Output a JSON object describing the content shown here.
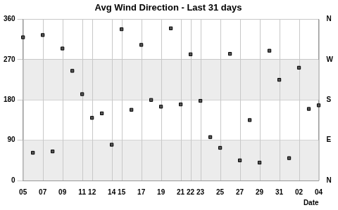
{
  "chart_data": {
    "type": "scatter",
    "title": "Avg Wind Direction - Last 31 days",
    "x_label": "Date",
    "categories": [
      "05",
      null,
      "07",
      null,
      "09",
      null,
      "11",
      "12",
      null,
      "14",
      "15",
      null,
      "17",
      null,
      "19",
      null,
      "21",
      "22",
      "23",
      null,
      "25",
      null,
      "27",
      null,
      "29",
      null,
      "31",
      null,
      "02",
      null,
      "04"
    ],
    "values": [
      320,
      62,
      325,
      65,
      295,
      245,
      193,
      140,
      150,
      80,
      338,
      158,
      303,
      180,
      165,
      340,
      170,
      282,
      178,
      97,
      73,
      283,
      45,
      135,
      40,
      290,
      225,
      50,
      252,
      160,
      168
    ],
    "color": "#555555",
    "marker": "square",
    "ylim": [
      0,
      360
    ],
    "yticks": [
      0,
      90,
      180,
      270,
      360
    ],
    "y2lim": [
      0,
      360
    ],
    "y2ticks": [
      {
        "value": 0,
        "label": "N"
      },
      {
        "value": 90,
        "label": "E"
      },
      {
        "value": 180,
        "label": "S"
      },
      {
        "value": 270,
        "label": "W"
      },
      {
        "value": 360,
        "label": "N"
      }
    ],
    "grid": true
  }
}
